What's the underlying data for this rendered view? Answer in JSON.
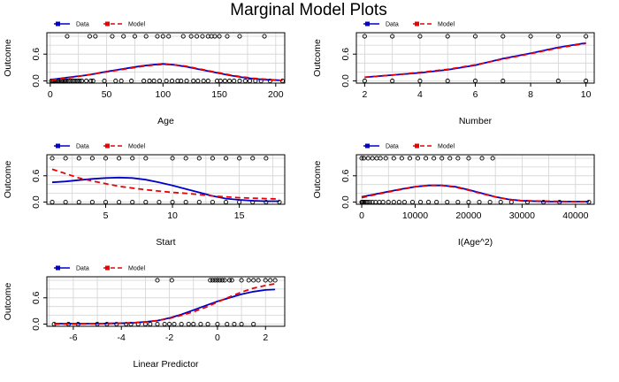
{
  "title": "Marginal Model Plots",
  "colors": {
    "data": "#0000cc",
    "model": "#ee0000",
    "grid": "#d3d3d3"
  },
  "legend": {
    "data": "Data",
    "model": "Model"
  },
  "chart_data": [
    {
      "type": "line",
      "xlabel": "Age",
      "ylabel": "Outcome",
      "xlim": [
        -3,
        208
      ],
      "ylim": [
        -0.05,
        1.08
      ],
      "xticks": [
        0,
        50,
        100,
        150,
        200
      ],
      "yticks": [
        0.0,
        0.6
      ],
      "ytick_labels": [
        "0.0",
        "0.6"
      ],
      "series": [
        {
          "name": "Data",
          "x": [
            1,
            10,
            20,
            30,
            40,
            50,
            60,
            70,
            80,
            90,
            100,
            110,
            120,
            130,
            140,
            150,
            160,
            170,
            180,
            190,
            200,
            206
          ],
          "values": [
            0.03,
            0.06,
            0.09,
            0.12,
            0.16,
            0.21,
            0.25,
            0.29,
            0.33,
            0.36,
            0.38,
            0.36,
            0.32,
            0.27,
            0.22,
            0.17,
            0.12,
            0.08,
            0.05,
            0.03,
            0.02,
            0.01
          ]
        },
        {
          "name": "Model",
          "x": [
            1,
            10,
            20,
            30,
            40,
            50,
            60,
            70,
            80,
            90,
            100,
            110,
            120,
            130,
            140,
            150,
            160,
            170,
            180,
            190,
            200,
            206
          ],
          "values": [
            0.02,
            0.05,
            0.08,
            0.12,
            0.16,
            0.2,
            0.24,
            0.28,
            0.32,
            0.35,
            0.37,
            0.36,
            0.33,
            0.28,
            0.23,
            0.18,
            0.13,
            0.09,
            0.06,
            0.04,
            0.02,
            0.01
          ]
        }
      ],
      "points": {
        "x1": [
          15,
          35,
          40,
          55,
          65,
          75,
          85,
          95,
          100,
          105,
          118,
          125,
          130,
          135,
          140,
          143,
          146,
          150,
          157,
          168,
          190
        ],
        "x0": [
          1,
          2,
          3,
          4,
          5,
          6,
          7,
          8,
          10,
          11,
          12,
          13,
          14,
          16,
          18,
          20,
          22,
          24,
          26,
          28,
          32,
          36,
          38,
          48,
          58,
          63,
          72,
          83,
          88,
          92,
          97,
          103,
          108,
          113,
          116,
          121,
          127,
          131,
          136,
          140,
          148,
          151,
          155,
          159,
          163,
          168,
          173,
          177,
          182,
          187,
          195,
          206
        ]
      }
    },
    {
      "type": "line",
      "xlabel": "Number",
      "ylabel": "Outcome",
      "xlim": [
        1.7,
        10.3
      ],
      "ylim": [
        -0.05,
        1.08
      ],
      "xticks": [
        2,
        4,
        6,
        8,
        10
      ],
      "yticks": [
        0.0,
        0.6
      ],
      "ytick_labels": [
        "0.0",
        "0.6"
      ],
      "series": [
        {
          "name": "Data",
          "x": [
            2,
            3,
            4,
            5,
            6,
            7,
            8,
            9,
            10
          ],
          "values": [
            0.08,
            0.13,
            0.18,
            0.25,
            0.35,
            0.5,
            0.62,
            0.75,
            0.85
          ]
        },
        {
          "name": "Model",
          "x": [
            2,
            3,
            4,
            5,
            6,
            7,
            8,
            9,
            10
          ],
          "values": [
            0.08,
            0.13,
            0.19,
            0.26,
            0.36,
            0.49,
            0.61,
            0.74,
            0.84
          ]
        }
      ],
      "points": {
        "x1": [
          2,
          3,
          4,
          5,
          6,
          7,
          8,
          9,
          10
        ],
        "x0": [
          2,
          3,
          4,
          5,
          6,
          7,
          9,
          10
        ]
      }
    },
    {
      "type": "line",
      "xlabel": "Start",
      "ylabel": "Outcome",
      "xlim": [
        0.6,
        18.4
      ],
      "ylim": [
        -0.05,
        1.08
      ],
      "xticks": [
        5,
        10,
        15
      ],
      "yticks": [
        0.0,
        0.6
      ],
      "ytick_labels": [
        "0.0",
        "0.6"
      ],
      "series": [
        {
          "name": "Data",
          "x": [
            1,
            2,
            3,
            4,
            5,
            6,
            7,
            8,
            9,
            10,
            11,
            12,
            13,
            14,
            15,
            16,
            17,
            18
          ],
          "values": [
            0.45,
            0.47,
            0.5,
            0.53,
            0.55,
            0.56,
            0.55,
            0.51,
            0.45,
            0.38,
            0.3,
            0.22,
            0.14,
            0.08,
            0.05,
            0.03,
            0.02,
            0.02
          ]
        },
        {
          "name": "Model",
          "x": [
            1,
            2,
            3,
            4,
            5,
            6,
            7,
            8,
            9,
            10,
            11,
            12,
            13,
            14,
            15,
            16,
            17,
            18
          ],
          "values": [
            0.75,
            0.65,
            0.55,
            0.48,
            0.42,
            0.36,
            0.32,
            0.28,
            0.25,
            0.22,
            0.2,
            0.17,
            0.14,
            0.12,
            0.1,
            0.09,
            0.08,
            0.07
          ]
        }
      ],
      "points": {
        "x1": [
          1,
          2,
          3,
          4,
          5,
          6,
          7,
          8,
          10,
          11,
          12,
          13,
          14,
          15,
          16,
          17
        ],
        "x0": [
          1,
          2,
          3,
          4,
          5,
          6,
          7,
          8,
          9,
          10,
          11,
          12,
          13,
          14,
          15,
          16,
          17,
          18
        ]
      }
    },
    {
      "type": "line",
      "xlabel": "I(Age^2)",
      "ylabel": "Outcome",
      "xlim": [
        -1000,
        43500
      ],
      "ylim": [
        -0.05,
        1.08
      ],
      "xticks": [
        0,
        10000,
        20000,
        30000,
        40000
      ],
      "yticks": [
        0.0,
        0.6
      ],
      "ytick_labels": [
        "0.0",
        "0.6"
      ],
      "series": [
        {
          "name": "Data",
          "x": [
            0,
            2500,
            5000,
            7500,
            10000,
            12500,
            15000,
            17500,
            20000,
            22500,
            25000,
            27500,
            30000,
            35000,
            40000,
            42500
          ],
          "values": [
            0.12,
            0.18,
            0.24,
            0.3,
            0.35,
            0.38,
            0.38,
            0.35,
            0.28,
            0.2,
            0.12,
            0.06,
            0.03,
            0.01,
            0.01,
            0.01
          ]
        },
        {
          "name": "Model",
          "x": [
            0,
            2500,
            5000,
            7500,
            10000,
            12500,
            15000,
            17500,
            20000,
            22500,
            25000,
            27500,
            30000,
            35000,
            40000,
            42500
          ],
          "values": [
            0.1,
            0.17,
            0.23,
            0.29,
            0.35,
            0.38,
            0.38,
            0.34,
            0.27,
            0.19,
            0.12,
            0.06,
            0.03,
            0.02,
            0.01,
            0.01
          ]
        }
      ],
      "points": {
        "x1": [
          0,
          400,
          1200,
          2000,
          2800,
          3500,
          4500,
          6000,
          7500,
          9000,
          10500,
          12000,
          13500,
          15000,
          16500,
          18000,
          20000,
          22500,
          24500
        ],
        "x0": [
          0,
          100,
          300,
          500,
          800,
          1100,
          1500,
          2000,
          2600,
          3300,
          4000,
          5000,
          6000,
          7000,
          8000,
          9500,
          11000,
          12500,
          14000,
          16000,
          18000,
          20000,
          22000,
          24000,
          26000,
          28000,
          31000,
          34000,
          37000,
          42500
        ]
      }
    },
    {
      "type": "line",
      "xlabel": "Linear Predictor",
      "ylabel": "Outcome",
      "xlim": [
        -7.1,
        2.8
      ],
      "ylim": [
        -0.05,
        1.08
      ],
      "xticks": [
        -6,
        -4,
        -2,
        0,
        2
      ],
      "yticks": [
        0.0,
        0.6
      ],
      "ytick_labels": [
        "0.0",
        "0.6"
      ],
      "series": [
        {
          "name": "Data",
          "x": [
            -6.8,
            -6,
            -5,
            -4,
            -3.5,
            -3,
            -2.5,
            -2,
            -1.5,
            -1,
            -0.5,
            0,
            0.5,
            1,
            1.5,
            2,
            2.4
          ],
          "values": [
            0.01,
            0.01,
            0.01,
            0.02,
            0.03,
            0.05,
            0.08,
            0.14,
            0.22,
            0.32,
            0.42,
            0.52,
            0.6,
            0.68,
            0.74,
            0.78,
            0.79
          ]
        },
        {
          "name": "Model",
          "x": [
            -6.8,
            -6,
            -5,
            -4,
            -3.5,
            -3,
            -2.5,
            -2,
            -1.5,
            -1,
            -0.5,
            0,
            0.5,
            1,
            1.5,
            2,
            2.4
          ],
          "values": [
            0.0,
            0.0,
            0.01,
            0.02,
            0.03,
            0.05,
            0.08,
            0.13,
            0.2,
            0.28,
            0.38,
            0.5,
            0.62,
            0.73,
            0.82,
            0.88,
            0.92
          ]
        }
      ],
      "points": {
        "x1": [
          -1.9,
          -0.3,
          -0.2,
          -0.1,
          0.0,
          0.1,
          0.2,
          0.3,
          0.5,
          0.6,
          1.0,
          1.3,
          1.5,
          1.7,
          2.0,
          2.2,
          2.4,
          -2.5
        ],
        "x0": [
          -6.8,
          -6.2,
          -5.8,
          -5.0,
          -4.6,
          -4.2,
          -3.8,
          -3.6,
          -3.3,
          -3.0,
          -2.8,
          -2.5,
          -2.2,
          -2.0,
          -1.8,
          -1.5,
          -1.2,
          -1.0,
          -0.7,
          -0.4,
          0.0,
          0.4,
          0.7,
          1.0,
          1.5
        ]
      }
    }
  ]
}
